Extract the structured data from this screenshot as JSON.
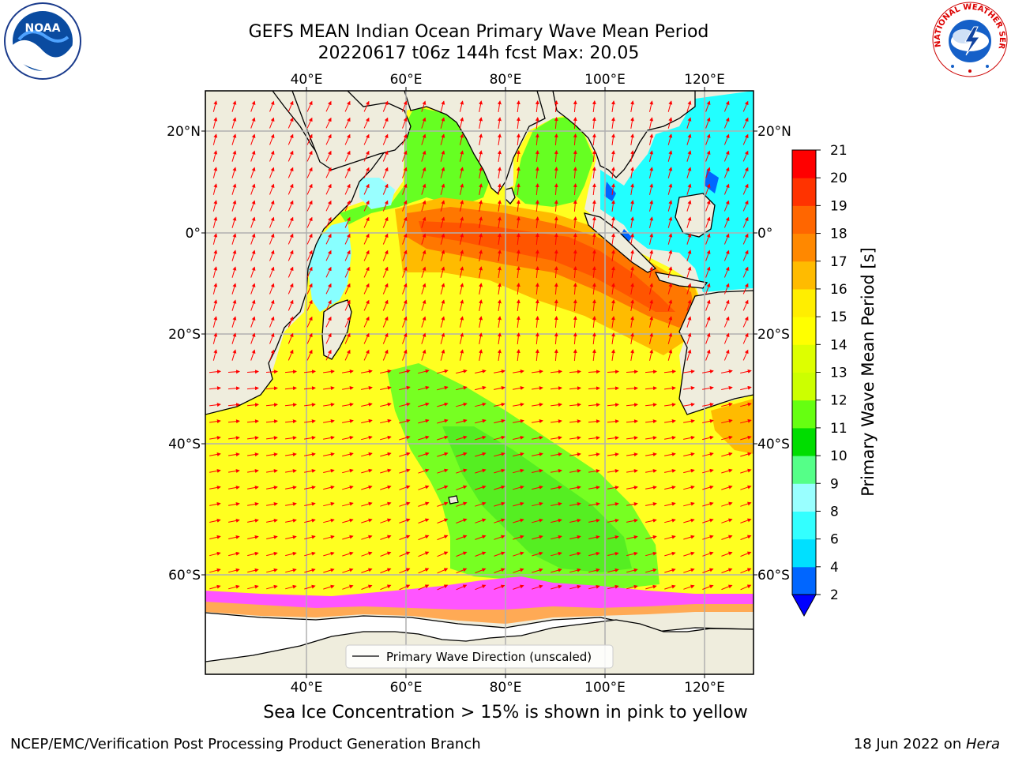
{
  "header": {
    "title_line1": "GEFS MEAN Indian Ocean Primary Wave Mean Period",
    "title_line2": "20220617 t06z 144h fcst   Max: 20.05"
  },
  "logos": {
    "left": "noaa-logo",
    "right": "national-weather-service-logo",
    "right_text": "NATIONAL WEATHER SERVICE"
  },
  "map": {
    "lon_labels_top": [
      "40°E",
      "60°E",
      "80°E",
      "100°E",
      "120°E"
    ],
    "lon_labels_bottom": [
      "40°E",
      "60°E",
      "80°E",
      "100°E",
      "120°E"
    ],
    "lat_labels_left": [
      "20°N",
      "0°",
      "20°S",
      "40°S",
      "60°S"
    ],
    "lat_labels_right": [
      "20°N",
      "0°",
      "20°S",
      "40°S",
      "60°S"
    ],
    "legend_label": "Primary Wave Direction (unscaled)",
    "land_color": "#efeddd",
    "arrow_color": "#ff0000"
  },
  "colorbar": {
    "label": "Primary Wave Mean Period [s]",
    "ticks": [
      "2",
      "4",
      "6",
      "8",
      "9",
      "10",
      "11",
      "12",
      "13",
      "14",
      "15",
      "16",
      "17",
      "18",
      "19",
      "20",
      "21"
    ],
    "colors": [
      "#0066ff",
      "#00e0ff",
      "#33ffff",
      "#99ffff",
      "#55ff88",
      "#00dd00",
      "#66ff11",
      "#ccff00",
      "#ddff00",
      "#ffff00",
      "#ffee00",
      "#ffbb00",
      "#ff8800",
      "#ff6600",
      "#ff3300",
      "#ff0000"
    ],
    "extend_color": "#0000ff"
  },
  "caption": "Sea Ice Concentration > 15% is shown in pink to yellow",
  "footer": {
    "left": "NCEP/EMC/Verification Post Processing Product Generation Branch",
    "right_date": "18 Jun 2022 on ",
    "right_host": "Hera"
  }
}
